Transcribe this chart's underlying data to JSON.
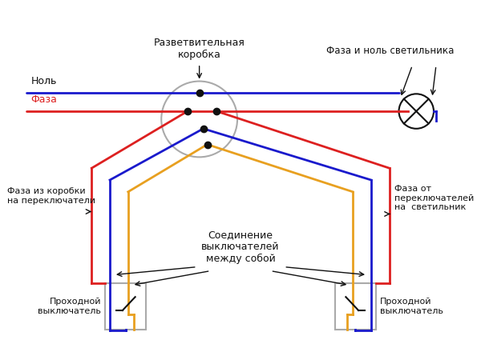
{
  "bg_color": "#ffffff",
  "blue_color": "#1a1acc",
  "red_color": "#dd2020",
  "orange_color": "#e8a020",
  "gray_color": "#aaaaaa",
  "black_color": "#111111",
  "null_label": "Ноль",
  "phase_label": "Фаза",
  "junction_label": "Разветвительная\nкоробка",
  "lamp_label": "Фаза и ноль светильника",
  "left_switch_label": "Проходной\nвыключатель",
  "right_switch_label": "Проходной\nвыключатель",
  "left_arrow_label": "Фаза из коробки\nна переключатели",
  "right_arrow_label": "Фаза от\nпереключателей\nна  светильник",
  "center_label": "Соединение\nвыключателей\nмежду собой"
}
